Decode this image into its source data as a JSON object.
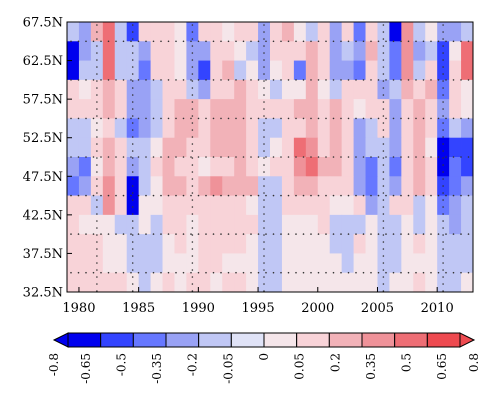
{
  "chart_data": {
    "type": "heatmap",
    "title": "",
    "xlabel": "",
    "ylabel": "",
    "x_start_year": 1979,
    "x_end_year": 2013,
    "xlim": [
      1979,
      2013
    ],
    "ylim_degrees_north": [
      32.5,
      67.5
    ],
    "x_ticks": [
      1980,
      1985,
      1990,
      1995,
      2000,
      2005,
      2010
    ],
    "x_tick_labels": [
      "1980",
      "1985",
      "1990",
      "1995",
      "2000",
      "2005",
      "2010"
    ],
    "y_ticks": [
      67.5,
      62.5,
      57.5,
      52.5,
      47.5,
      42.5,
      37.5,
      32.5
    ],
    "y_tick_labels": [
      "67.5N",
      "62.5N",
      "57.5N",
      "52.5N",
      "47.5N",
      "42.5N",
      "37.5N",
      "32.5N"
    ],
    "row_latitudes_north_to_south": [
      66.25,
      63.75,
      61.25,
      58.75,
      56.25,
      53.75,
      51.25,
      48.75,
      46.25,
      43.75,
      41.25,
      38.75,
      36.25,
      33.75
    ],
    "colorbar": {
      "levels": [
        -0.8,
        -0.65,
        -0.5,
        -0.35,
        -0.2,
        -0.05,
        0,
        0.05,
        0.2,
        0.35,
        0.5,
        0.65,
        0.8
      ],
      "labels": [
        "-0.8",
        "-0.65",
        "-0.5",
        "-0.35",
        "-0.2",
        "-0.05",
        "0",
        "0.05",
        "0.2",
        "0.35",
        "0.5",
        "0.65",
        "0.8"
      ],
      "colors": [
        "#0000ee",
        "#3344ff",
        "#6677ff",
        "#99a2f5",
        "#c0c7f5",
        "#e0e3f7",
        "#f5e6ea",
        "#f8d3d8",
        "#f2b2b8",
        "#ef9299",
        "#ee6e75",
        "#ee4a50"
      ],
      "extend": "both"
    },
    "stippling": "dotted rows and columns mark significant grid cells",
    "values": [
      [
        -0.1,
        -0.3,
        0.25,
        0.55,
        -0.1,
        -0.5,
        0.15,
        0.2,
        0.1,
        0.05,
        -0.45,
        0.2,
        0.2,
        0.05,
        0.15,
        0.1,
        -0.3,
        0.1,
        0.25,
        0.05,
        -0.15,
        0.1,
        -0.2,
        0.15,
        -0.35,
        0.1,
        -0.15,
        -0.8,
        0.4,
        -0.1,
        0.05,
        -0.2,
        -0.3,
        -0.05
      ],
      [
        -0.65,
        -0.2,
        -0.05,
        0.6,
        -0.1,
        -0.15,
        -0.3,
        0.1,
        0.2,
        0.05,
        -0.2,
        -0.3,
        0.2,
        0.15,
        0.05,
        -0.1,
        -0.3,
        0.2,
        0.1,
        0.15,
        0.35,
        0.1,
        -0.25,
        -0.15,
        -0.3,
        0.25,
        -0.1,
        -0.35,
        0.4,
        -0.2,
        -0.15,
        -0.5,
        0.05,
        0.6
      ],
      [
        -0.7,
        -0.1,
        -0.05,
        0.65,
        -0.1,
        -0.1,
        -0.4,
        0.2,
        0.1,
        0.05,
        -0.2,
        -0.55,
        0.15,
        0.25,
        -0.1,
        0.05,
        -0.3,
        0.05,
        0.15,
        -0.35,
        0.35,
        0.2,
        -0.3,
        -0.2,
        -0.35,
        0.2,
        -0.05,
        -0.45,
        0.45,
        -0.15,
        0.1,
        -0.6,
        0.1,
        0.55
      ],
      [
        0.15,
        0.05,
        0.1,
        0.25,
        0.2,
        -0.2,
        -0.3,
        -0.05,
        0.15,
        0.2,
        -0.1,
        -0.3,
        0.2,
        0.2,
        0.25,
        0.1,
        0.05,
        -0.05,
        0.05,
        0.05,
        0.3,
        0.05,
        -0.1,
        0.2,
        0.15,
        0.1,
        -0.2,
        -0.15,
        0.3,
        0.1,
        0.3,
        -0.35,
        0.2,
        0.05
      ],
      [
        0.1,
        0.2,
        0.1,
        0.3,
        0.15,
        -0.3,
        -0.25,
        -0.15,
        0.2,
        0.3,
        0.25,
        0.2,
        0.25,
        0.3,
        0.25,
        0.2,
        0.2,
        0.1,
        0.2,
        0.25,
        0.25,
        0.15,
        0.3,
        0.1,
        0.05,
        0.2,
        0.1,
        -0.2,
        0.2,
        0.3,
        0.2,
        -0.2,
        0.15,
        0.05
      ],
      [
        -0.1,
        -0.15,
        0.05,
        0.2,
        -0.15,
        -0.4,
        -0.2,
        -0.05,
        0.1,
        0.3,
        0.25,
        0.15,
        0.3,
        0.3,
        0.35,
        0.15,
        -0.15,
        -0.05,
        0.2,
        0.1,
        0.3,
        0.1,
        0.25,
        0.15,
        -0.25,
        -0.1,
        0.1,
        -0.25,
        0.15,
        0.35,
        0.2,
        -0.4,
        -0.15,
        -0.25
      ],
      [
        -0.05,
        -0.1,
        0.2,
        0.35,
        0.15,
        -0.1,
        -0.1,
        0.05,
        0.25,
        0.3,
        0.2,
        0.2,
        0.3,
        0.3,
        0.3,
        0.2,
        -0.1,
        0.05,
        0.2,
        0.55,
        0.5,
        0.2,
        0.25,
        0.2,
        -0.2,
        -0.15,
        -0.1,
        -0.25,
        0.2,
        0.35,
        0.05,
        -0.8,
        -0.55,
        -0.5
      ],
      [
        -0.3,
        -0.45,
        0.05,
        0.35,
        0.1,
        -0.2,
        -0.15,
        0.15,
        0.3,
        0.15,
        0.2,
        0.05,
        0.2,
        0.2,
        0.25,
        0.2,
        0.05,
        0.2,
        0.2,
        0.5,
        0.55,
        0.25,
        0.3,
        0.1,
        -0.2,
        -0.35,
        -0.1,
        -0.35,
        0.2,
        0.3,
        0.2,
        -0.75,
        -0.45,
        -0.55
      ],
      [
        -0.4,
        -0.3,
        0.1,
        0.45,
        0.2,
        -0.75,
        -0.15,
        0.05,
        0.25,
        0.25,
        0.2,
        0.3,
        0.4,
        0.35,
        0.25,
        0.3,
        -0.15,
        -0.05,
        0.2,
        0.35,
        0.3,
        0.1,
        0.2,
        0.2,
        -0.2,
        -0.45,
        -0.05,
        -0.3,
        0.1,
        0.3,
        0.2,
        -0.6,
        -0.35,
        -0.3
      ],
      [
        0.1,
        0.1,
        -0.1,
        0.45,
        0.1,
        -0.7,
        0.05,
        0.05,
        0.15,
        0.15,
        0.1,
        0.1,
        0.2,
        0.2,
        0.15,
        0.05,
        -0.05,
        -0.05,
        0.1,
        0.15,
        0.1,
        0.15,
        0.05,
        0.05,
        0.1,
        -0.25,
        -0.05,
        0.1,
        0.1,
        -0.1,
        0.05,
        -0.4,
        -0.25,
        -0.1
      ],
      [
        0.1,
        0.05,
        0.05,
        0.05,
        -0.05,
        -0.1,
        0.05,
        -0.1,
        0.1,
        0.15,
        0.05,
        0.1,
        0.15,
        0.1,
        0.1,
        0.1,
        -0.05,
        -0.1,
        0.05,
        0.05,
        0.05,
        0.1,
        -0.05,
        -0.1,
        -0.05,
        0.05,
        -0.05,
        -0.05,
        0.05,
        -0.05,
        0.05,
        -0.1,
        -0.2,
        -0.15
      ],
      [
        0.15,
        0.15,
        0.2,
        0.05,
        0.05,
        -0.1,
        -0.05,
        -0.1,
        0.05,
        0.15,
        0.05,
        0.1,
        0.1,
        0.1,
        0.1,
        0.05,
        -0.15,
        -0.1,
        0.05,
        0.05,
        0.05,
        0.05,
        -0.05,
        -0.1,
        0.1,
        0.05,
        -0.1,
        -0.05,
        0.05,
        0.1,
        0.05,
        -0.1,
        -0.1,
        -0.1
      ],
      [
        0.15,
        0.15,
        0.15,
        0.05,
        0.05,
        -0.05,
        -0.15,
        -0.1,
        0.05,
        0.05,
        0.05,
        0.1,
        0.1,
        0.05,
        0.05,
        0.05,
        -0.1,
        -0.15,
        0.05,
        0.05,
        0.05,
        0.05,
        0.05,
        -0.05,
        0.05,
        0.05,
        -0.1,
        -0.05,
        0.05,
        0.05,
        0.05,
        -0.15,
        -0.1,
        -0.05
      ],
      [
        0.2,
        0.15,
        0.1,
        0.15,
        0.1,
        0.05,
        -0.1,
        0.05,
        0.1,
        0.05,
        0.1,
        0.1,
        0.05,
        0.1,
        0.1,
        0.05,
        -0.05,
        -0.1,
        0.05,
        0.05,
        0.05,
        0.05,
        0.05,
        0.05,
        0.05,
        0.05,
        -0.05,
        0.05,
        0.05,
        0.1,
        0.05,
        -0.1,
        -0.05,
        0.05
      ]
    ]
  }
}
